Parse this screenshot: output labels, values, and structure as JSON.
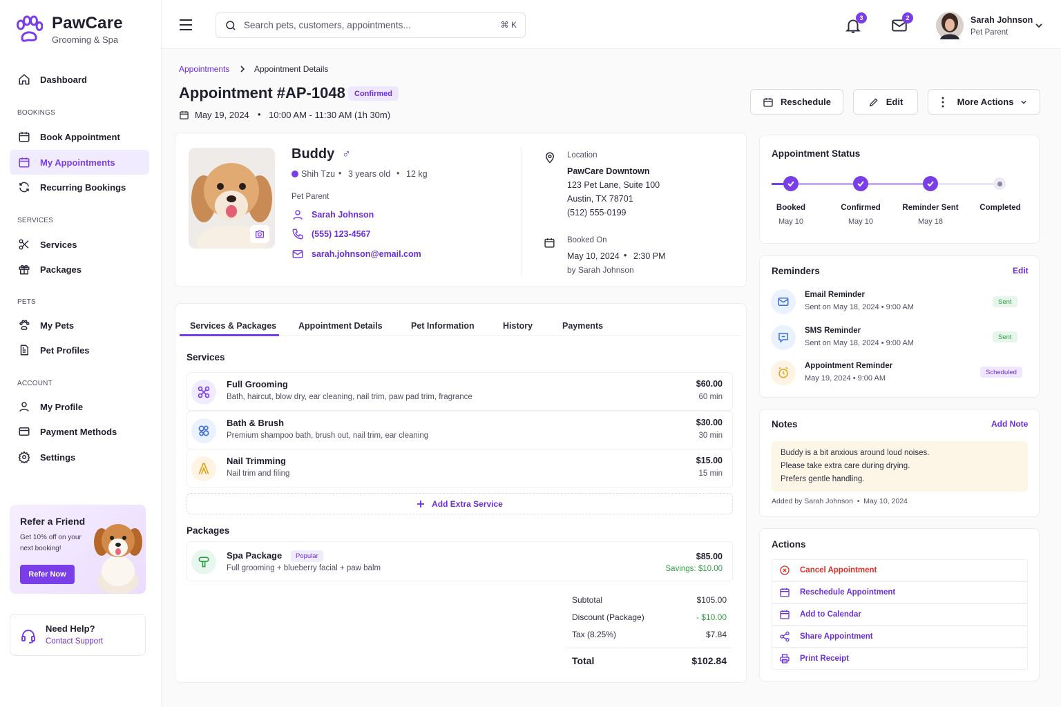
{
  "brand": {
    "name": "PawCare",
    "subtitle": "Grooming & Spa"
  },
  "sidebar": {
    "dashboard": "Dashboard",
    "sections": {
      "bookings": "BOOKINGS",
      "services": "SERVICES",
      "pets": "PETS",
      "account": "ACCOUNT"
    },
    "items": {
      "book": "Book Appointment",
      "my_appointments": "My Appointments",
      "recurring": "Recurring Bookings",
      "services": "Services",
      "packages": "Packages",
      "my_pets": "My Pets",
      "pet_profiles": "Pet Profiles",
      "my_profile": "My Profile",
      "payment_methods": "Payment Methods",
      "settings": "Settings"
    },
    "refer": {
      "title": "Refer a Friend",
      "text": "Get 10% off on your next booking!",
      "button": "Refer Now"
    },
    "help": {
      "title": "Need Help?",
      "link": "Contact Support"
    }
  },
  "topbar": {
    "search_placeholder": "Search pets, customers, appointments...",
    "search_shortcut": "⌘ K",
    "notifications_count": "3",
    "messages_count": "2",
    "user_name": "Sarah Johnson",
    "user_role": "Pet Parent"
  },
  "breadcrumb": {
    "parent": "Appointments",
    "current": "Appointment Details"
  },
  "header": {
    "title": "Appointment #AP-1048",
    "status": "Confirmed",
    "date": "May 19, 2024",
    "time": "10:00 AM - 11:30 AM (1h 30m)",
    "reschedule": "Reschedule",
    "edit": "Edit",
    "more": "More Actions"
  },
  "pet": {
    "name": "Buddy",
    "gender_symbol": "♂",
    "breed": "Shih Tzu",
    "age": "3 years old",
    "weight": "12 kg",
    "parent_label": "Pet Parent",
    "parent_name": "Sarah Johnson",
    "phone": "(555) 123-4567",
    "email": "sarah.johnson@email.com"
  },
  "location": {
    "label": "Location",
    "name": "PawCare Downtown",
    "line1": "123 Pet Lane, Suite 100",
    "line2": "Austin, TX 78701",
    "phone": "(512) 555-0199"
  },
  "booked": {
    "label": "Booked On",
    "date": "May 10, 2024",
    "time": "2:30 PM",
    "by": "by Sarah Johnson"
  },
  "tabs": [
    "Services & Packages",
    "Appointment Details",
    "Pet Information",
    "History",
    "Payments"
  ],
  "services_title": "Services",
  "services": [
    {
      "name": "Full Grooming",
      "desc": "Bath, haircut, blow dry, ear cleaning, nail trim, paw pad trim, fragrance",
      "price": "$60.00",
      "duration": "60 min"
    },
    {
      "name": "Bath & Brush",
      "desc": "Premium shampoo bath, brush out, nail trim, ear cleaning",
      "price": "$30.00",
      "duration": "30 min"
    },
    {
      "name": "Nail Trimming",
      "desc": "Nail trim and filing",
      "price": "$15.00",
      "duration": "15 min"
    }
  ],
  "add_service": "Add Extra Service",
  "packages_title": "Packages",
  "package": {
    "name": "Spa Package",
    "tag": "Popular",
    "desc": "Full grooming + blueberry facial + paw balm",
    "price": "$85.00",
    "savings": "Savings: $10.00"
  },
  "summary": {
    "subtotal_label": "Subtotal",
    "subtotal": "$105.00",
    "discount_label": "Discount (Package)",
    "discount": "- $10.00",
    "tax_label": "Tax (8.25%)",
    "tax": "$7.84",
    "total_label": "Total",
    "total": "$102.84"
  },
  "status": {
    "title": "Appointment Status",
    "steps": [
      {
        "label": "Booked",
        "date": "May 10"
      },
      {
        "label": "Confirmed",
        "date": "May 10"
      },
      {
        "label": "Reminder Sent",
        "date": "May 18"
      },
      {
        "label": "Completed",
        "date": ""
      }
    ]
  },
  "reminders": {
    "title": "Reminders",
    "edit": "Edit",
    "items": [
      {
        "title": "Email Reminder",
        "sub": "Sent on May 18, 2024  •  9:00 AM",
        "status": "Sent"
      },
      {
        "title": "SMS Reminder",
        "sub": "Sent on May 18, 2024  •  9:00 AM",
        "status": "Sent"
      },
      {
        "title": "Appointment Reminder",
        "sub": "May 19, 2024  •  9:00 AM",
        "status": "Scheduled"
      }
    ]
  },
  "notes": {
    "title": "Notes",
    "add": "Add Note",
    "lines": [
      "Buddy is a bit anxious around loud noises.",
      "Please take extra care during drying.",
      "Prefers gentle handling."
    ],
    "meta": "Added by Sarah Johnson  •  May 10, 2024"
  },
  "actions": {
    "title": "Actions",
    "items": [
      "Cancel Appointment",
      "Reschedule Appointment",
      "Add to Calendar",
      "Share Appointment",
      "Print Receipt"
    ]
  },
  "colors": {
    "accent": "#7a3ee8",
    "danger": "#d93025",
    "success": "#2f9e44",
    "note_bg": "#fdf6e7"
  }
}
